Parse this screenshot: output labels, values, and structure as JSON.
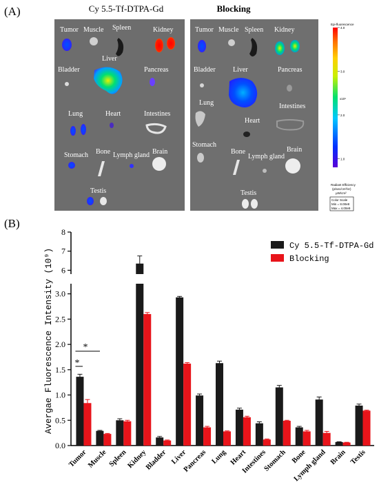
{
  "panel_a": {
    "letter": "(A)",
    "groups": [
      {
        "title": "Cy 5.5-Tf-DTPA-Gd",
        "organ_labels": [
          "Tumor",
          "Muscle",
          "Spleen",
          "Kidney",
          "Bladder",
          "Liver",
          "Pancreas",
          "Lung",
          "Heart",
          "Intestines",
          "Stomach",
          "Bone",
          "Lymph gland",
          "Brain",
          "Testis"
        ]
      },
      {
        "title": "Blocking",
        "organ_labels": [
          "Tumor",
          "Muscle",
          "Spleen",
          "Kidney",
          "Bladder",
          "Liver",
          "Pancreas",
          "Lung",
          "Intestines",
          "Heart",
          "Stomach",
          "Bone",
          "Lymph gland",
          "Brain",
          "Testis"
        ]
      }
    ],
    "colorbar": {
      "title": "Epi-fluorescence",
      "ticks": [
        "4.0",
        "3.0",
        "2.0",
        "1.0"
      ],
      "tick_values": [
        4.0,
        3.0,
        2.0,
        1.0
      ],
      "unit": "x10⁹",
      "range": [
        0.8,
        4.0
      ],
      "caption_lines": [
        "Radiant Efficiency",
        "(p/sec/cm²/sr)",
        "μW/cm²"
      ],
      "scale_lines": [
        "Color Scale",
        "Min = 8.00e8",
        "Max = 4.00e9"
      ],
      "colors": [
        "#5a00d8",
        "#0030ff",
        "#00c8ff",
        "#00e070",
        "#c8f000",
        "#ffd000",
        "#ff7000",
        "#ff0000"
      ]
    }
  },
  "panel_b": {
    "letter": "(B)"
  },
  "chart_data": {
    "type": "bar",
    "ylabel": "Avergae Fluorescence Intensity (10⁹)",
    "categories": [
      "Tumor",
      "Muscle",
      "Spleen",
      "Kidney",
      "Bladder",
      "Liver",
      "Pancreas",
      "Lung",
      "Heart",
      "Intestines",
      "Stomach",
      "Bone",
      "Lymph gland",
      "Brain",
      "Testis"
    ],
    "series": [
      {
        "name": "Cy 5.5-Tf-DTPA-Gd",
        "color": "#1a1a1a",
        "values": [
          1.36,
          0.29,
          0.5,
          6.35,
          0.16,
          2.93,
          0.99,
          1.63,
          0.71,
          0.44,
          1.15,
          0.36,
          0.91,
          0.07,
          0.79
        ],
        "errors": [
          0.05,
          0.01,
          0.03,
          0.4,
          0.02,
          0.02,
          0.03,
          0.04,
          0.03,
          0.03,
          0.04,
          0.02,
          0.05,
          0.005,
          0.03
        ]
      },
      {
        "name": "Blocking",
        "color": "#e8141a",
        "values": [
          0.84,
          0.23,
          0.48,
          2.6,
          0.1,
          1.62,
          0.36,
          0.28,
          0.56,
          0.12,
          0.49,
          0.28,
          0.25,
          0.06,
          0.69
        ],
        "errors": [
          0.07,
          0.01,
          0.02,
          0.03,
          0.01,
          0.02,
          0.02,
          0.01,
          0.02,
          0.01,
          0.01,
          0.02,
          0.03,
          0.005,
          0.01
        ]
      }
    ],
    "axis_break": {
      "lower_range": [
        0,
        3.2
      ],
      "upper_range": [
        5.8,
        8
      ]
    },
    "lower_ticks": [
      "0.0",
      "0.5",
      "1.0",
      "1.5",
      "2.0",
      "2.5",
      "3.0"
    ],
    "lower_tick_values": [
      0.0,
      0.5,
      1.0,
      1.5,
      2.0,
      2.5,
      3.0
    ],
    "upper_ticks": [
      "6",
      "7",
      "8"
    ],
    "upper_tick_values": [
      6,
      7,
      8
    ],
    "legend_position": "top-right",
    "annotations": [
      {
        "text": "*",
        "category": "Tumor"
      },
      {
        "text": "*",
        "category": "Tumor"
      }
    ]
  }
}
